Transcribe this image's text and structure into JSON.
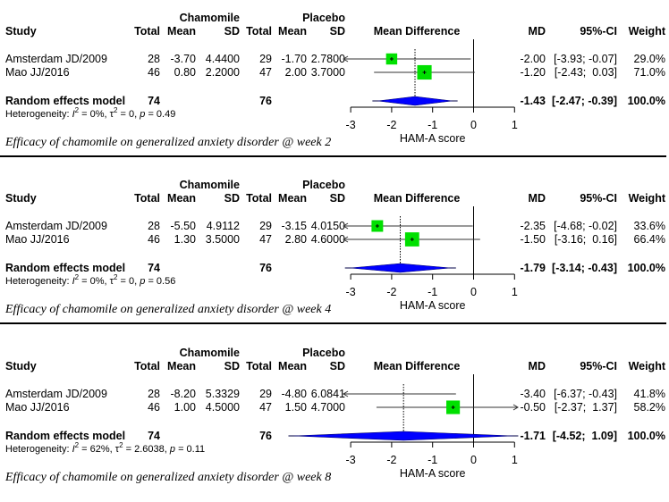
{
  "labels": {
    "study": "Study",
    "group1": "Chamomile",
    "group2": "Placebo",
    "total": "Total",
    "mean": "Mean",
    "sd": "SD",
    "plot_header": "Mean Difference",
    "md": "MD",
    "ci": "95%-CI",
    "weight": "Weight",
    "random_effects": "Random effects model",
    "heterogeneity_prefix": "Heterogeneity: ",
    "axis_label": "HAM-A score"
  },
  "chart_data": [
    {
      "type": "forest",
      "title": "Efficacy of chamomile on generalized anxiety disorder @ week 2",
      "xlabel": "HAM-A score",
      "xlim": [
        -3,
        1
      ],
      "xticks": [
        -3,
        -2,
        -1,
        0,
        1
      ],
      "studies": [
        {
          "name": "Amsterdam JD/2009",
          "c_total": "28",
          "c_mean": "-3.70",
          "c_sd": "4.4400",
          "p_total": "29",
          "p_mean": "-1.70",
          "p_sd": "2.7800",
          "md": -2.0,
          "lo": -3.93,
          "hi": -0.07,
          "md_text": "-2.00",
          "ci_text": "[-3.93; -0.07]",
          "weight": 29.0,
          "weight_text": "29.0%"
        },
        {
          "name": "Mao JJ/2016",
          "c_total": "46",
          "c_mean": "0.80",
          "c_sd": "2.2000",
          "p_total": "47",
          "p_mean": "2.00",
          "p_sd": "3.7000",
          "md": -1.2,
          "lo": -2.43,
          "hi": 0.03,
          "md_text": "-1.20",
          "ci_text": "[-2.43;  0.03]",
          "weight": 71.0,
          "weight_text": "71.0%"
        }
      ],
      "pooled": {
        "c_total": "74",
        "p_total": "76",
        "md": -1.43,
        "lo": -2.47,
        "hi": -0.39,
        "md_text": "-1.43",
        "ci_text": "[-2.47; -0.39]",
        "weight_text": "100.0%"
      },
      "heterogeneity": {
        "i2": "0%",
        "tau2": "0",
        "p": "0.49"
      }
    },
    {
      "type": "forest",
      "title": "Efficacy of chamomile on generalized anxiety disorder @ week 4",
      "xlabel": "HAM-A score",
      "xlim": [
        -3,
        1
      ],
      "xticks": [
        -3,
        -2,
        -1,
        0,
        1
      ],
      "studies": [
        {
          "name": "Amsterdam JD/2009",
          "c_total": "28",
          "c_mean": "-5.50",
          "c_sd": "4.9112",
          "p_total": "29",
          "p_mean": "-3.15",
          "p_sd": "4.0150",
          "md": -2.35,
          "lo": -4.68,
          "hi": -0.02,
          "md_text": "-2.35",
          "ci_text": "[-4.68; -0.02]",
          "weight": 33.6,
          "weight_text": "33.6%"
        },
        {
          "name": "Mao JJ/2016",
          "c_total": "46",
          "c_mean": "1.30",
          "c_sd": "3.5000",
          "p_total": "47",
          "p_mean": "2.80",
          "p_sd": "4.6000",
          "md": -1.5,
          "lo": -3.16,
          "hi": 0.16,
          "md_text": "-1.50",
          "ci_text": "[-3.16;  0.16]",
          "weight": 66.4,
          "weight_text": "66.4%"
        }
      ],
      "pooled": {
        "c_total": "74",
        "p_total": "76",
        "md": -1.79,
        "lo": -3.14,
        "hi": -0.43,
        "md_text": "-1.79",
        "ci_text": "[-3.14; -0.43]",
        "weight_text": "100.0%"
      },
      "heterogeneity": {
        "i2": "0%",
        "tau2": "0",
        "p": "0.56"
      }
    },
    {
      "type": "forest",
      "title": "Efficacy of chamomile on generalized anxiety disorder @ week 8",
      "xlabel": "HAM-A score",
      "xlim": [
        -3,
        1
      ],
      "xticks": [
        -3,
        -2,
        -1,
        0,
        1
      ],
      "studies": [
        {
          "name": "Amsterdam JD/2009",
          "c_total": "28",
          "c_mean": "-8.20",
          "c_sd": "5.3329",
          "p_total": "29",
          "p_mean": "-4.80",
          "p_sd": "6.0841",
          "md": -3.4,
          "lo": -6.37,
          "hi": -0.43,
          "md_text": "-3.40",
          "ci_text": "[-6.37; -0.43]",
          "weight": 41.8,
          "weight_text": "41.8%"
        },
        {
          "name": "Mao JJ/2016",
          "c_total": "46",
          "c_mean": "1.00",
          "c_sd": "4.5000",
          "p_total": "47",
          "p_mean": "1.50",
          "p_sd": "4.7000",
          "md": -0.5,
          "lo": -2.37,
          "hi": 1.37,
          "md_text": "-0.50",
          "ci_text": "[-2.37;  1.37]",
          "weight": 58.2,
          "weight_text": "58.2%"
        }
      ],
      "pooled": {
        "c_total": "74",
        "p_total": "76",
        "md": -1.71,
        "lo": -4.52,
        "hi": 1.09,
        "md_text": "-1.71",
        "ci_text": "[-4.52;  1.09]",
        "weight_text": "100.0%"
      },
      "heterogeneity": {
        "i2": "62%",
        "tau2": "2.6038",
        "p": "0.11"
      }
    }
  ],
  "colors": {
    "square": "#00e000",
    "diamond": "#0000ff",
    "line": "#000000"
  }
}
